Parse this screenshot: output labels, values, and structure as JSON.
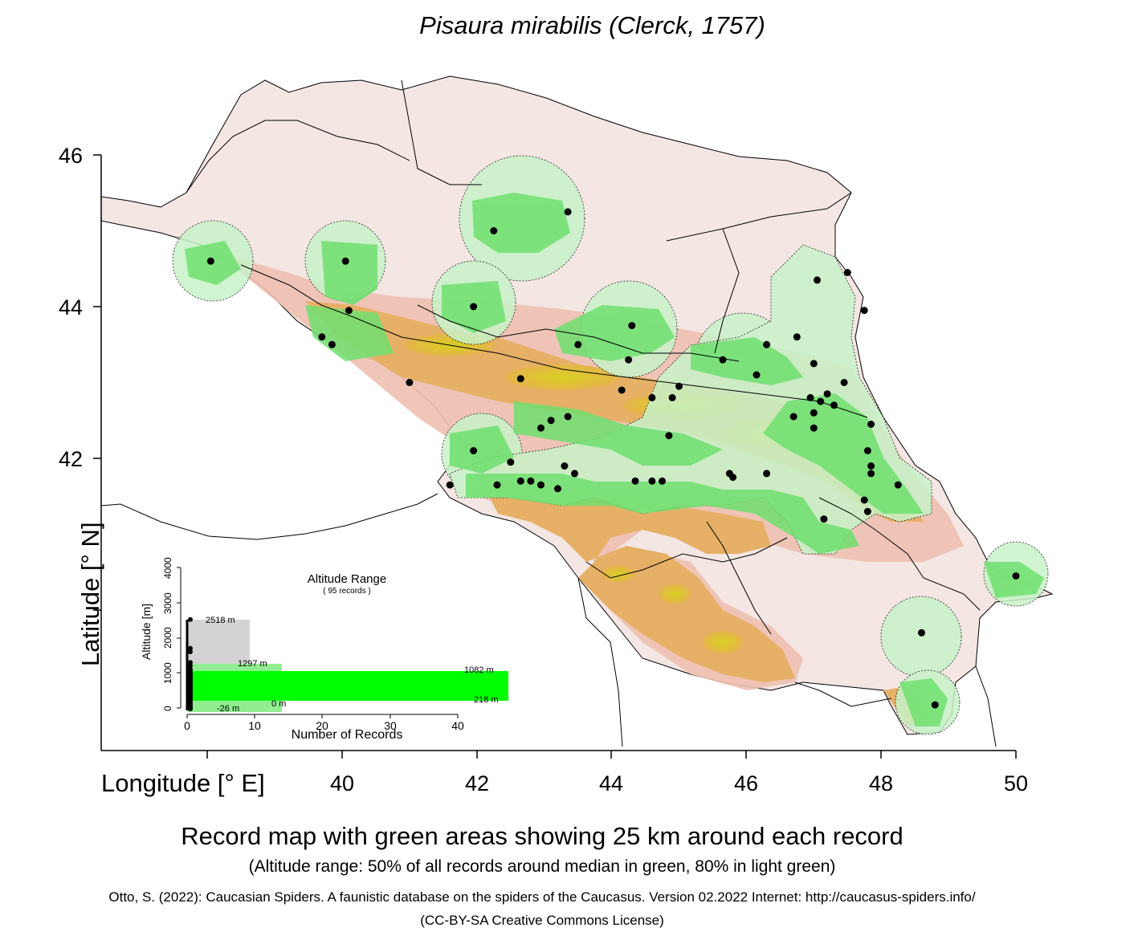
{
  "title": "Pisaura mirabilis (Clerck, 1757)",
  "axes": {
    "xlabel": "Longitude [° E]",
    "ylabel": "Latitude [° N]",
    "x_ticks": [
      "40",
      "42",
      "44",
      "46",
      "48",
      "50"
    ],
    "y_ticks": [
      "46",
      "44",
      "42"
    ]
  },
  "caption": {
    "main": "Record map with green areas showing 25 km around each record",
    "sub": "(Altitude range: 50% of all records around median in green, 80% in light green)",
    "citation": "Otto, S. (2022): Caucasian Spiders. A faunistic database on the spiders of the Caucasus. Version 02.2022 Internet: http://caucasus-spiders.info/",
    "license": "(CC-BY-SA Creative Commons License)"
  },
  "inset": {
    "title": "Altitude Range",
    "subtitle": "( 95 records )",
    "xlabel": "Number of Records",
    "ylabel": "Altitude [m]",
    "x_ticks": [
      "0",
      "10",
      "20",
      "30",
      "40"
    ],
    "y_ticks": [
      "0",
      "1000",
      "2000",
      "3000",
      "4000"
    ],
    "labels": {
      "max": "2518  m",
      "p90": "1297  m",
      "p75": "1082  m",
      "p25": "218  m",
      "p10": "0  m",
      "min": "-26  m"
    },
    "colors": {
      "range_all": "#d3d3d3",
      "range_80": "#90ee90",
      "range_50": "#00ff00"
    }
  },
  "map": {
    "buffer_radius": "25 km",
    "colors": {
      "buffer": "#7fe07f",
      "buffer_light": "#c8f2c8",
      "records": "#000000",
      "lowland": "#f3e6e3",
      "hills": "#e8a07e",
      "mountains": "#e6b44c",
      "peaks": "#d8d020",
      "borders": "#000000"
    },
    "records": [
      {
        "lon": 40.05,
        "lat": 44.6
      },
      {
        "lon": 38.05,
        "lat": 44.6
      },
      {
        "lon": 43.35,
        "lat": 45.25
      },
      {
        "lon": 42.25,
        "lat": 45.0
      },
      {
        "lon": 40.1,
        "lat": 43.95
      },
      {
        "lon": 41.95,
        "lat": 44.0
      },
      {
        "lon": 39.7,
        "lat": 43.6
      },
      {
        "lon": 39.85,
        "lat": 43.5
      },
      {
        "lon": 43.5,
        "lat": 43.5
      },
      {
        "lon": 44.3,
        "lat": 43.75
      },
      {
        "lon": 44.25,
        "lat": 43.3
      },
      {
        "lon": 42.65,
        "lat": 43.05
      },
      {
        "lon": 41.0,
        "lat": 43.0
      },
      {
        "lon": 45.65,
        "lat": 43.3
      },
      {
        "lon": 46.3,
        "lat": 43.5
      },
      {
        "lon": 46.75,
        "lat": 43.6
      },
      {
        "lon": 46.15,
        "lat": 43.1
      },
      {
        "lon": 47.0,
        "lat": 43.25
      },
      {
        "lon": 47.5,
        "lat": 44.45
      },
      {
        "lon": 47.05,
        "lat": 44.35
      },
      {
        "lon": 47.75,
        "lat": 43.95
      },
      {
        "lon": 47.45,
        "lat": 43.0
      },
      {
        "lon": 44.15,
        "lat": 42.9
      },
      {
        "lon": 44.6,
        "lat": 42.8
      },
      {
        "lon": 44.9,
        "lat": 42.8
      },
      {
        "lon": 45.0,
        "lat": 42.95
      },
      {
        "lon": 43.1,
        "lat": 42.5
      },
      {
        "lon": 42.95,
        "lat": 42.4
      },
      {
        "lon": 43.35,
        "lat": 42.55
      },
      {
        "lon": 44.85,
        "lat": 42.3
      },
      {
        "lon": 46.95,
        "lat": 42.8
      },
      {
        "lon": 47.1,
        "lat": 42.75
      },
      {
        "lon": 47.2,
        "lat": 42.85
      },
      {
        "lon": 47.3,
        "lat": 42.7
      },
      {
        "lon": 47.0,
        "lat": 42.6
      },
      {
        "lon": 46.7,
        "lat": 42.55
      },
      {
        "lon": 47.0,
        "lat": 42.4
      },
      {
        "lon": 47.85,
        "lat": 42.45
      },
      {
        "lon": 47.8,
        "lat": 42.1
      },
      {
        "lon": 47.85,
        "lat": 41.9
      },
      {
        "lon": 47.85,
        "lat": 41.8
      },
      {
        "lon": 48.25,
        "lat": 41.65
      },
      {
        "lon": 47.75,
        "lat": 41.45
      },
      {
        "lon": 47.8,
        "lat": 41.3
      },
      {
        "lon": 47.15,
        "lat": 41.2
      },
      {
        "lon": 41.95,
        "lat": 42.1
      },
      {
        "lon": 42.5,
        "lat": 41.95
      },
      {
        "lon": 41.6,
        "lat": 41.65
      },
      {
        "lon": 42.3,
        "lat": 41.65
      },
      {
        "lon": 42.65,
        "lat": 41.7
      },
      {
        "lon": 42.8,
        "lat": 41.7
      },
      {
        "lon": 42.95,
        "lat": 41.65
      },
      {
        "lon": 43.2,
        "lat": 41.6
      },
      {
        "lon": 43.3,
        "lat": 41.9
      },
      {
        "lon": 43.45,
        "lat": 41.8
      },
      {
        "lon": 44.35,
        "lat": 41.7
      },
      {
        "lon": 44.6,
        "lat": 41.7
      },
      {
        "lon": 44.75,
        "lat": 41.7
      },
      {
        "lon": 45.75,
        "lat": 41.8
      },
      {
        "lon": 45.8,
        "lat": 41.75
      },
      {
        "lon": 46.3,
        "lat": 41.8
      },
      {
        "lon": 50.0,
        "lat": 40.45
      },
      {
        "lon": 48.6,
        "lat": 39.7
      },
      {
        "lon": 48.8,
        "lat": 38.75
      }
    ]
  }
}
